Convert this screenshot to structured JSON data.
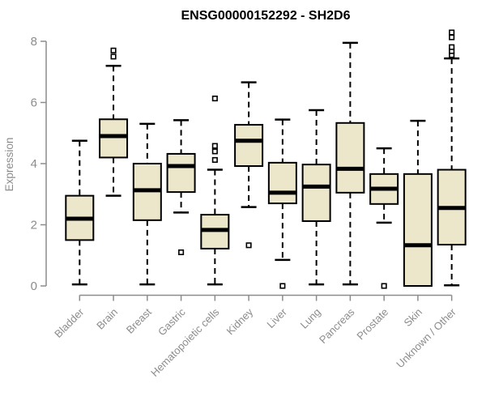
{
  "chart_data": {
    "type": "boxplot",
    "title": "ENSG00000152292 - SH2D6",
    "ylabel": "Expression",
    "xlabel": "",
    "ylim": [
      0,
      8
    ],
    "yticks": [
      0,
      2,
      4,
      6,
      8
    ],
    "grid": false,
    "legend": "none",
    "categories": [
      "Bladder",
      "Brain",
      "Breast",
      "Gastric",
      "Hematopoietic cells",
      "Kidney",
      "Liver",
      "Lung",
      "Pancreas",
      "Prostate",
      "Skin",
      "Unknown / Other"
    ],
    "boxes": [
      {
        "category": "Bladder",
        "whisker_low": 0.05,
        "q1": 1.5,
        "median": 2.2,
        "q3": 2.95,
        "whisker_high": 4.75,
        "outliers": []
      },
      {
        "category": "Brain",
        "whisker_low": 2.95,
        "q1": 4.2,
        "median": 4.9,
        "q3": 5.45,
        "whisker_high": 7.2,
        "outliers": [
          7.5,
          7.7
        ]
      },
      {
        "category": "Breast",
        "whisker_low": 0.05,
        "q1": 2.15,
        "median": 3.13,
        "q3": 4.0,
        "whisker_high": 5.3,
        "outliers": []
      },
      {
        "category": "Gastric",
        "whisker_low": 2.4,
        "q1": 3.07,
        "median": 3.92,
        "q3": 4.32,
        "whisker_high": 5.42,
        "outliers": [
          1.1
        ]
      },
      {
        "category": "Hematopoietic cells",
        "whisker_low": 0.05,
        "q1": 1.22,
        "median": 1.83,
        "q3": 2.33,
        "whisker_high": 3.8,
        "outliers": [
          4.12,
          4.4,
          4.58,
          6.13
        ]
      },
      {
        "category": "Kidney",
        "whisker_low": 2.58,
        "q1": 3.92,
        "median": 4.75,
        "q3": 5.27,
        "whisker_high": 6.66,
        "outliers": [
          1.33
        ]
      },
      {
        "category": "Liver",
        "whisker_low": 0.85,
        "q1": 2.7,
        "median": 3.05,
        "q3": 4.03,
        "whisker_high": 5.44,
        "outliers": [
          0.0
        ]
      },
      {
        "category": "Lung",
        "whisker_low": 0.05,
        "q1": 2.12,
        "median": 3.25,
        "q3": 3.97,
        "whisker_high": 5.75,
        "outliers": []
      },
      {
        "category": "Pancreas",
        "whisker_low": 0.05,
        "q1": 3.05,
        "median": 3.83,
        "q3": 5.33,
        "whisker_high": 7.95,
        "outliers": []
      },
      {
        "category": "Prostate",
        "whisker_low": 2.07,
        "q1": 2.68,
        "median": 3.18,
        "q3": 3.66,
        "whisker_high": 4.5,
        "outliers": [
          0.0
        ]
      },
      {
        "category": "Skin",
        "whisker_low": 0.0,
        "q1": 0.0,
        "median": 1.33,
        "q3": 3.66,
        "whisker_high": 5.4,
        "outliers": []
      },
      {
        "category": "Unknown / Other",
        "whisker_low": 0.02,
        "q1": 1.35,
        "median": 2.55,
        "q3": 3.8,
        "whisker_high": 7.44,
        "outliers": [
          7.55,
          7.68,
          7.81,
          8.13,
          8.29
        ]
      }
    ],
    "colors": {
      "box_fill": "#ece7cb",
      "box_border": "#000000",
      "median": "#000000",
      "whisker": "#000000",
      "outlier_fill": "#ffffff",
      "outlier_border": "#000000",
      "axis": "#8c8c8c",
      "tick_label": "#8c8c8c",
      "title": "#000000",
      "background": "#ffffff"
    }
  }
}
